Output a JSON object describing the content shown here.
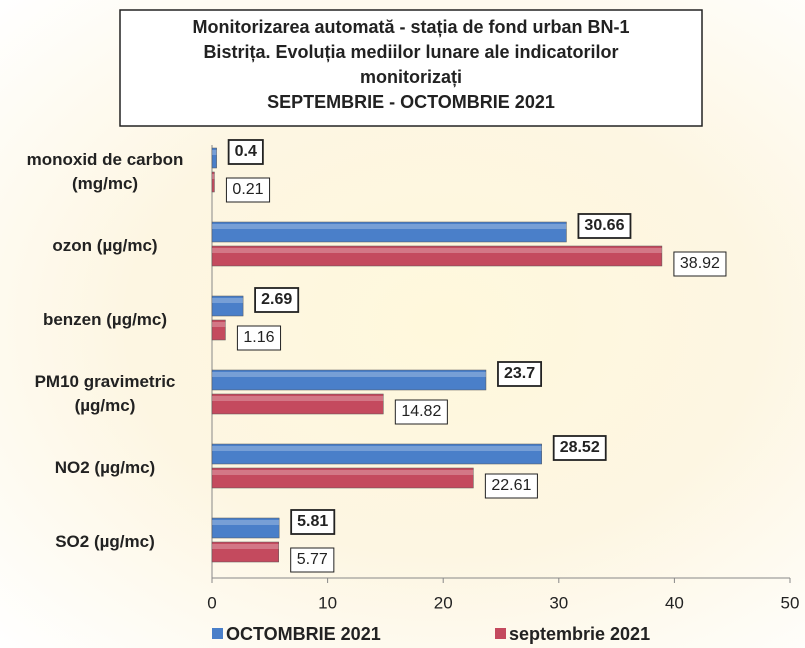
{
  "chart_data": {
    "type": "barh",
    "title": [
      "Monitorizarea automată  - stația de fond urban BN-1",
      "Bistrița. Evoluția mediilor lunare ale indicatorilor",
      "monitorizați",
      "SEPTEMBRIE - OCTOMBRIE 2021"
    ],
    "categories": [
      "monoxid de carbon (mg/mc)",
      "ozon (µg/mc)",
      "benzen (µg/mc)",
      "PM10 gravimetric (µg/mc)",
      "NO2 (µg/mc)",
      "SO2 (µg/mc)"
    ],
    "series": [
      {
        "name": "OCTOMBRIE 2021",
        "color": "#4a7fc9",
        "values": [
          0.4,
          30.66,
          2.69,
          23.7,
          28.52,
          5.81
        ]
      },
      {
        "name": "septembrie 2021",
        "color": "#c44a5e",
        "values": [
          0.21,
          38.92,
          1.16,
          14.82,
          22.61,
          5.77
        ]
      }
    ],
    "xlim": [
      0,
      50
    ],
    "xticks": [
      0,
      10,
      20,
      30,
      40,
      50
    ],
    "legend": "bottom"
  }
}
